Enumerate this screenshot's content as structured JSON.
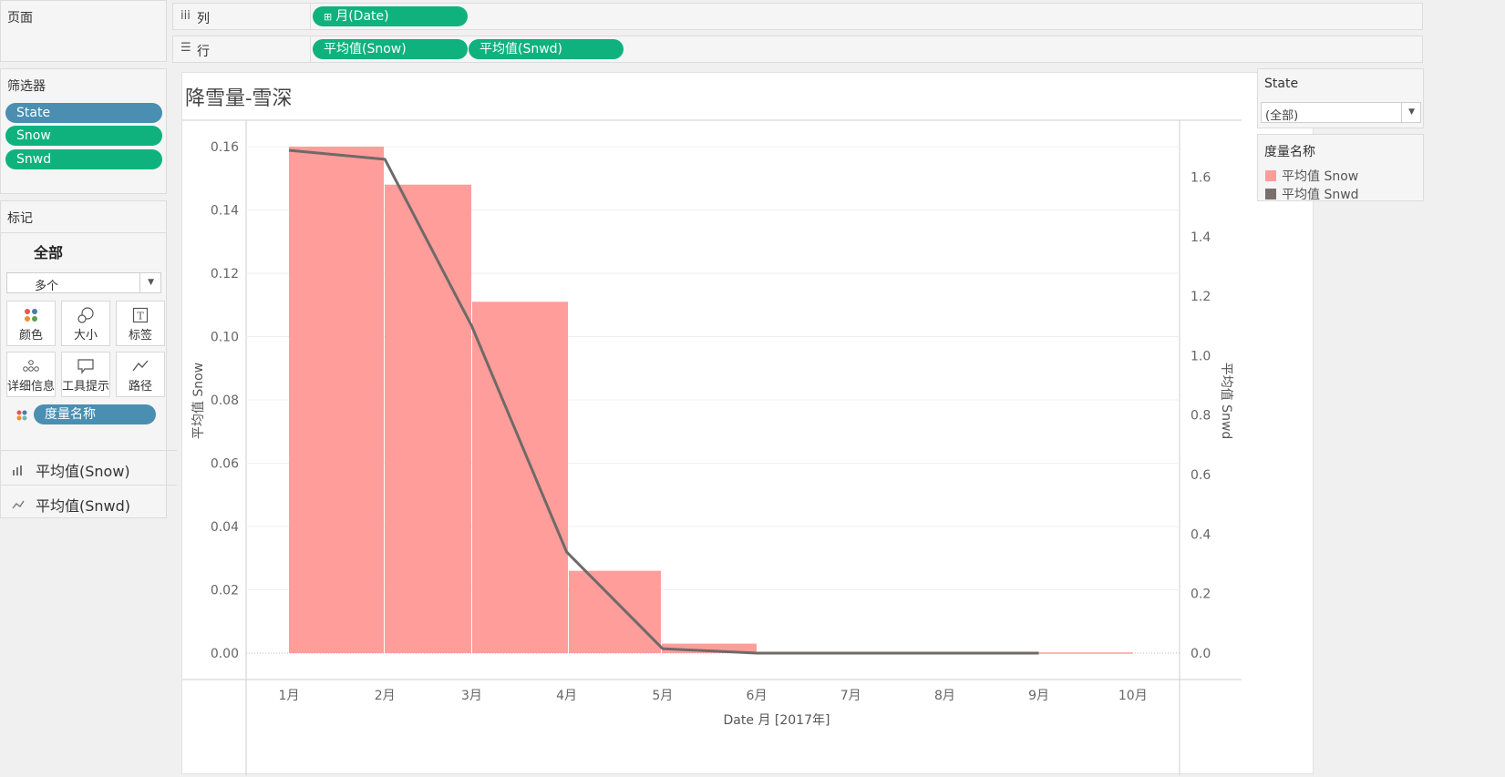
{
  "pages_panel": {
    "title": "页面"
  },
  "columns_shelf": {
    "icon": "columns-icon",
    "label": "列",
    "pill": "月(Date)"
  },
  "rows_shelf": {
    "icon": "rows-icon",
    "label": "行",
    "pills": [
      "平均值(Snow)",
      "平均值(Snwd)"
    ]
  },
  "filters_panel": {
    "title": "筛选器",
    "pills": [
      {
        "label": "State",
        "color": "#4a8fb2"
      },
      {
        "label": "Snow",
        "color": "#0fb27d"
      },
      {
        "label": "Snwd",
        "color": "#0fb27d"
      }
    ]
  },
  "marks_panel": {
    "title": "标记",
    "all_label": "全部",
    "mark_type": "多个",
    "buttons": [
      "颜色",
      "大小",
      "标签",
      "详细信息",
      "工具提示",
      "路径"
    ],
    "color_pill": "度量名称",
    "measures": [
      {
        "icon": "bar-chart-icon",
        "label": "平均值(Snow)"
      },
      {
        "icon": "line-chart-icon",
        "label": "平均值(Snwd)"
      }
    ]
  },
  "state_filter": {
    "title": "State",
    "value": "(全部)"
  },
  "legend": {
    "title": "度量名称",
    "items": [
      {
        "label": "平均值 Snow",
        "color": "#ff9d9a"
      },
      {
        "label": "平均值 Snwd",
        "color": "#79706e"
      }
    ]
  },
  "chart_data": {
    "type": "bar",
    "title": "降雪量-雪深",
    "categories": [
      "1月",
      "2月",
      "3月",
      "4月",
      "5月",
      "6月",
      "7月",
      "8月",
      "9月",
      "10月"
    ],
    "xlabel": "Date 月 [2017年]",
    "ylabel_left": "平均值 Snow",
    "ylabel_right": "平均值 Snwd",
    "ylim_left": [
      0,
      0.16
    ],
    "ylim_right": [
      0,
      1.7
    ],
    "yticks_left": [
      "0.00",
      "0.02",
      "0.04",
      "0.06",
      "0.08",
      "0.10",
      "0.12",
      "0.14",
      "0.16"
    ],
    "yticks_right": [
      "0.0",
      "0.2",
      "0.4",
      "0.6",
      "0.8",
      "1.0",
      "1.2",
      "1.4",
      "1.6"
    ],
    "series": [
      {
        "name": "平均值 Snow",
        "kind": "bar",
        "axis": "left",
        "color": "#ff9d9a",
        "values": [
          0.16,
          0.148,
          0.111,
          0.026,
          0.003,
          0.0,
          0.0,
          0.0,
          0.0,
          0.0
        ]
      },
      {
        "name": "平均值 Snwd",
        "kind": "line",
        "axis": "right",
        "color": "#6e6a68",
        "values": [
          1.69,
          1.66,
          1.1,
          0.34,
          0.015,
          0.0,
          0.0,
          0.0,
          0.0,
          null
        ]
      }
    ],
    "grid": true
  }
}
